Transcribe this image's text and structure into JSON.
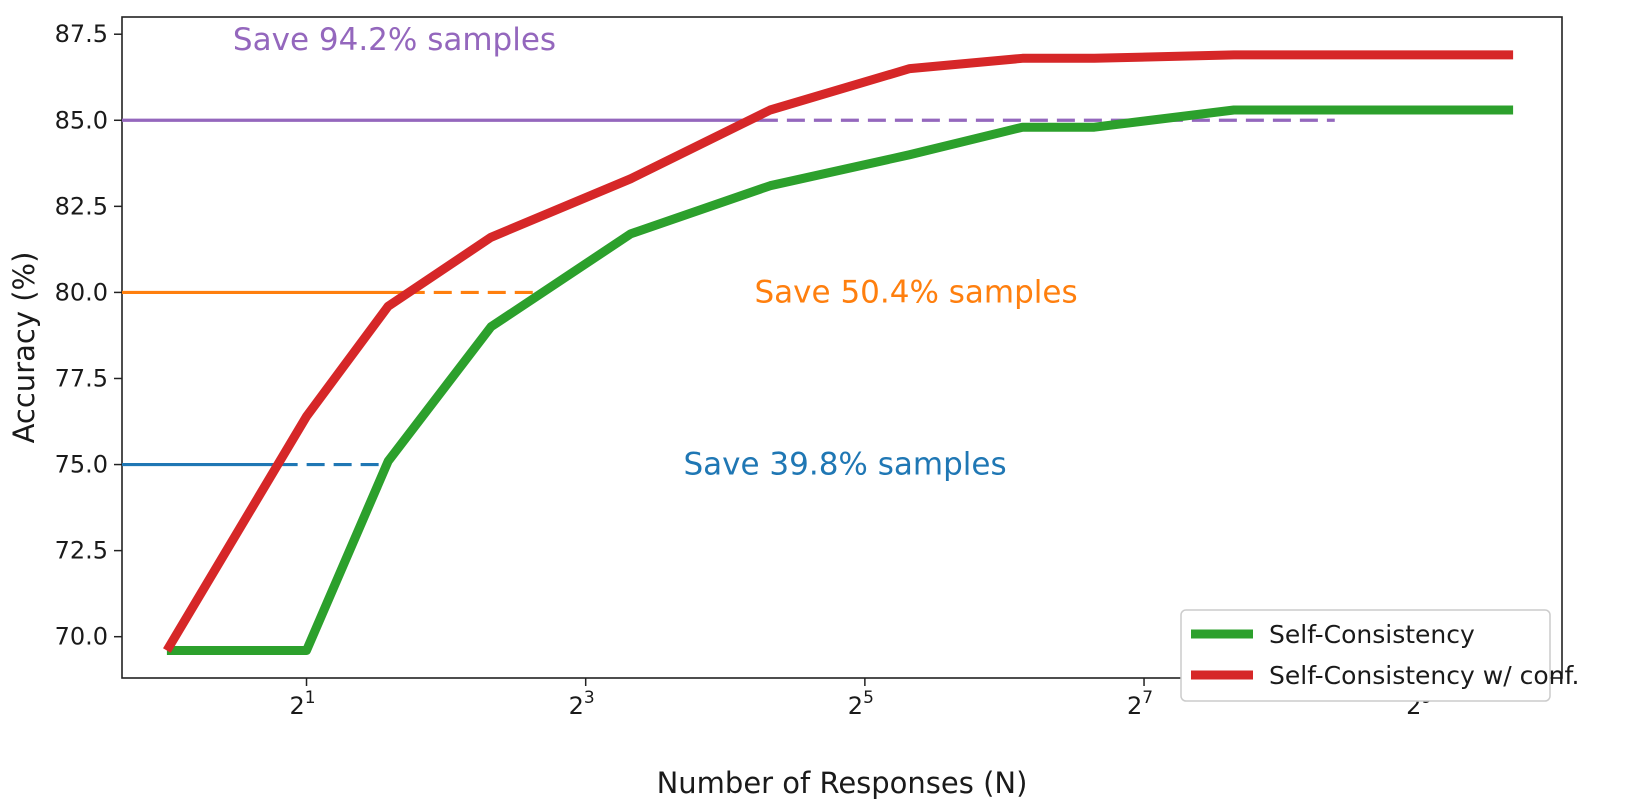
{
  "chart_data": {
    "type": "line",
    "title": "",
    "xlabel": "Number of Responses (N)",
    "ylabel": "Accuracy (%)",
    "x_scale": "log2",
    "x": [
      1,
      2,
      3,
      5,
      10,
      20,
      40,
      70,
      100,
      200,
      400,
      800
    ],
    "xlim": [
      0.8,
      1020
    ],
    "ylim": [
      68.8,
      88.0
    ],
    "xticks": [
      {
        "value": 2,
        "base": "2",
        "exp": "1"
      },
      {
        "value": 8,
        "base": "2",
        "exp": "3"
      },
      {
        "value": 32,
        "base": "2",
        "exp": "5"
      },
      {
        "value": 128,
        "base": "2",
        "exp": "7"
      },
      {
        "value": 512,
        "base": "2",
        "exp": "9"
      }
    ],
    "yticks": [
      "70.0",
      "72.5",
      "75.0",
      "77.5",
      "80.0",
      "82.5",
      "85.0",
      "87.5"
    ],
    "series": [
      {
        "name": "Self-Consistency",
        "color": "#2ca02c",
        "values": [
          69.6,
          69.6,
          75.1,
          79.0,
          81.7,
          83.1,
          84.0,
          84.8,
          84.8,
          85.3,
          85.3,
          85.3
        ]
      },
      {
        "name": "Self-Consistency w/ conf.",
        "color": "#d62728",
        "values": [
          69.6,
          76.4,
          79.6,
          81.6,
          83.3,
          85.3,
          86.5,
          86.8,
          86.8,
          86.9,
          86.9,
          86.9
        ]
      }
    ],
    "reference_lines": [
      {
        "y": 75.0,
        "color": "#1f77b4",
        "solid_to_x": 1.75,
        "dashed_to_x": 2.92,
        "label": "Save 39.8% samples",
        "label_x": 13.0
      },
      {
        "y": 80.0,
        "color": "#ff7f0e",
        "solid_to_x": 3.29,
        "dashed_to_x": 6.62,
        "label": "Save 50.4% samples",
        "label_x": 18.5
      },
      {
        "y": 85.0,
        "color": "#9467bd",
        "solid_to_x": 19.0,
        "dashed_to_x": 330,
        "label": "Save 94.2% samples",
        "label_x": 1.0
      }
    ],
    "grid": false,
    "legend_position": "bottom-right"
  }
}
